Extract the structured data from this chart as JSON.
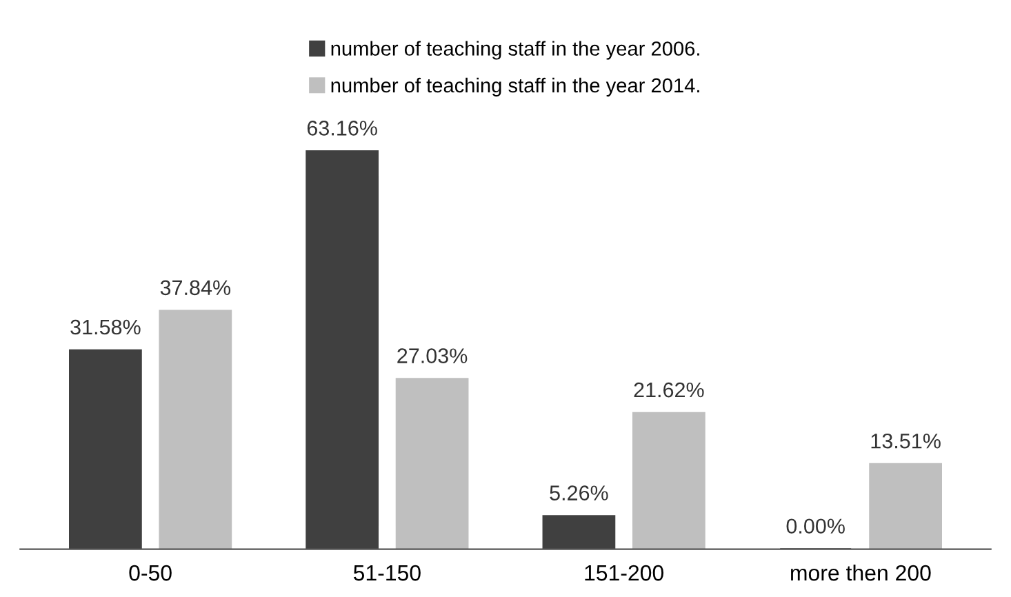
{
  "chart_data": {
    "type": "bar",
    "categories": [
      "0-50",
      "51-150",
      "151-200",
      "more then 200"
    ],
    "series": [
      {
        "name": "number of teaching staff in the year 2006.",
        "color": "#404040",
        "values": [
          31.58,
          63.16,
          5.26,
          0.0
        ],
        "value_labels": [
          "31.58%",
          "63.16%",
          "5.26%",
          "0.00%"
        ]
      },
      {
        "name": "number of teaching staff in the year 2014.",
        "color": "#bfbfbf",
        "values": [
          37.84,
          27.03,
          21.62,
          13.51
        ],
        "value_labels": [
          "37.84%",
          "27.03%",
          "21.62%",
          "13.51%"
        ]
      }
    ],
    "legend": "top",
    "grid": false
  }
}
